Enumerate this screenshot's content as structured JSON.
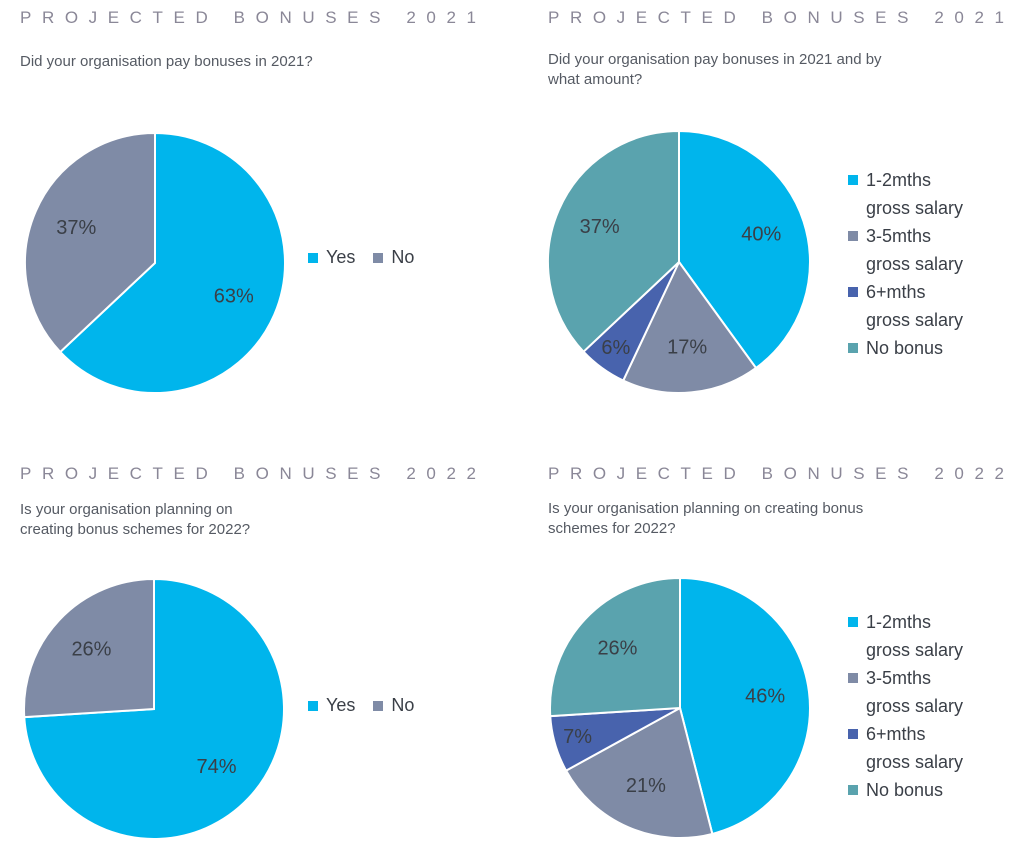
{
  "colors": {
    "yes": "#00b5ec",
    "no": "#7f8ba6",
    "range_1_2": "#00b5ec",
    "range_3_5": "#7f8ba6",
    "range_6_plus": "#4863ad",
    "no_bonus": "#5aa3ae"
  },
  "chart_data": [
    {
      "type": "pie",
      "title": "PROJECTED BONUSES 2021",
      "subtitle": "Did your organisation pay bonuses in 2021?",
      "categories": [
        "Yes",
        "No"
      ],
      "values": [
        63,
        37
      ],
      "labels": [
        "63%",
        "37%"
      ],
      "legend_position": "right"
    },
    {
      "type": "pie",
      "title": "PROJECTED BONUSES 2021",
      "subtitle": "Did your organisation pay bonuses in 2021 and by what amount?",
      "categories": [
        "1-2mths gross salary",
        "3-5mths gross salary",
        "6+mths gross salary",
        "No bonus"
      ],
      "values": [
        40,
        17,
        6,
        37
      ],
      "labels": [
        "40%",
        "17%",
        "6%",
        "37%"
      ],
      "legend_position": "right"
    },
    {
      "type": "pie",
      "title": "PROJECTED BONUSES 2022",
      "subtitle": "Is  your organisation planning on creating bonus schemes for 2022?",
      "categories": [
        "Yes",
        "No"
      ],
      "values": [
        74,
        26
      ],
      "labels": [
        "74%",
        "26%"
      ],
      "legend_position": "right"
    },
    {
      "type": "pie",
      "title": "PROJECTED BONUSES 2022",
      "subtitle": "Is your organisation planning on creating bonus schemes for 2022?",
      "categories": [
        "1-2mths gross salary",
        "3-5mths gross salary",
        "6+mths gross salary",
        "No bonus"
      ],
      "values": [
        46,
        21,
        7,
        26
      ],
      "labels": [
        "46%",
        "21%",
        "7%",
        "26%"
      ],
      "legend_position": "right"
    }
  ],
  "legend_two": [
    "Yes",
    "No"
  ],
  "legend_four": [
    [
      "1-2mths",
      "gross salary"
    ],
    [
      "3-5mths",
      "gross salary"
    ],
    [
      "6+mths",
      "gross salary"
    ],
    [
      "No bonus"
    ]
  ]
}
